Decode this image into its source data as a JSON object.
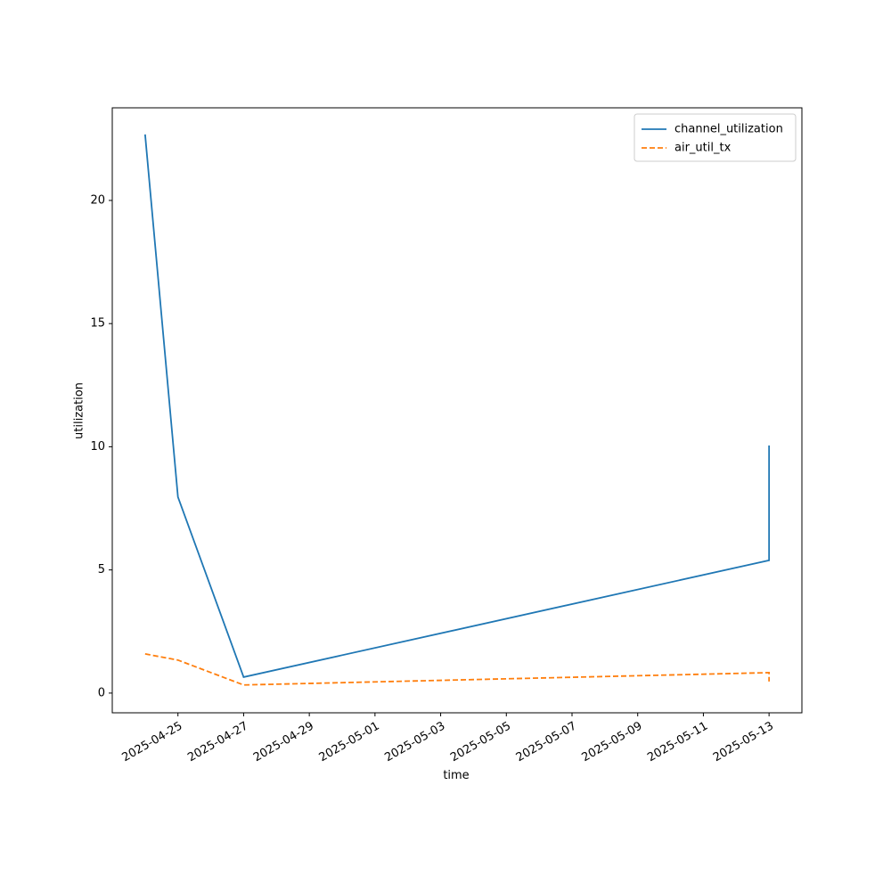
{
  "chart_data": {
    "type": "line",
    "x_label": "time",
    "y_label": "utilization",
    "x": [
      "2025-04-24",
      "2025-04-25",
      "2025-04-27",
      "2025-05-13",
      "2025-05-13"
    ],
    "series": [
      {
        "name": "channel_utilization",
        "color": "#1f77b4",
        "dash": "solid",
        "values": [
          22.68,
          7.96,
          0.65,
          5.39,
          10.05
        ]
      },
      {
        "name": "air_util_tx",
        "color": "#ff7f0e",
        "dash": "dashed",
        "values": [
          1.59,
          1.34,
          0.33,
          0.83,
          0.47
        ]
      }
    ],
    "xlim": [
      "2025-04-23",
      "2025-05-14"
    ],
    "xticks": [
      "2025-04-25",
      "2025-04-27",
      "2025-04-29",
      "2025-05-01",
      "2025-05-03",
      "2025-05-05",
      "2025-05-07",
      "2025-05-09",
      "2025-05-11",
      "2025-05-13"
    ],
    "ylim": [
      -0.8,
      23.76
    ],
    "yticks": [
      0,
      5,
      10,
      15,
      20
    ],
    "legend": "upper right"
  }
}
